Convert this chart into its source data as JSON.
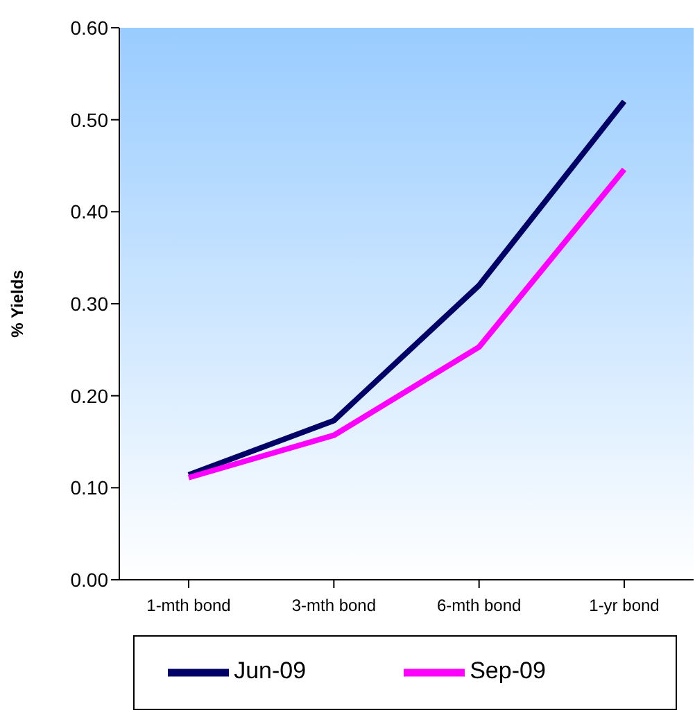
{
  "chart_data": {
    "type": "line",
    "ylabel": "% Yields",
    "categories": [
      "1-mth bond",
      "3-mth bond",
      "6-mth bond",
      "1-yr bond"
    ],
    "series": [
      {
        "name": "Jun-09",
        "color": "#000066",
        "values": [
          0.114,
          0.173,
          0.32,
          0.52
        ]
      },
      {
        "name": "Sep-09",
        "color": "#ff00ff",
        "values": [
          0.111,
          0.157,
          0.253,
          0.446
        ]
      }
    ],
    "ylim": [
      0,
      0.6
    ],
    "yticks": [
      {
        "value": 0,
        "label": "0.00"
      },
      {
        "value": 0.1,
        "label": "0.10"
      },
      {
        "value": 0.2,
        "label": "0.20"
      },
      {
        "value": 0.3,
        "label": "0.30"
      },
      {
        "value": 0.4,
        "label": "0.40"
      },
      {
        "value": 0.5,
        "label": "0.50"
      },
      {
        "value": 0.6,
        "label": "0.60"
      }
    ],
    "grid": false,
    "legend": "bottom",
    "marker": "none",
    "line_style": "solid"
  }
}
